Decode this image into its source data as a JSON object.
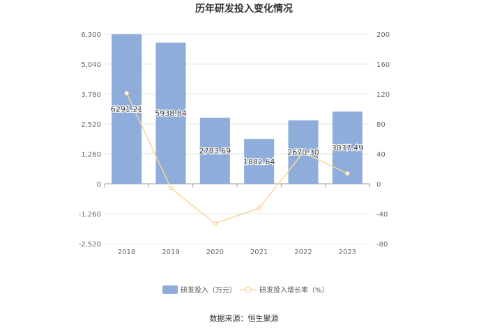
{
  "chart_data": {
    "type": "bar",
    "title": "历年研发投入变化情况",
    "categories": [
      "2018",
      "2019",
      "2020",
      "2021",
      "2022",
      "2023"
    ],
    "series": [
      {
        "name": "研发投入（万元）",
        "type": "bar",
        "axis": "left",
        "color": "#8eaddb",
        "values": [
          6291.21,
          5938.84,
          2783.69,
          1882.64,
          2670.3,
          3037.49
        ],
        "labels": [
          "6291.21",
          "5938.84",
          "2783.69",
          "1882.64",
          "2670.30",
          "3037.49"
        ]
      },
      {
        "name": "研发投入增长率（%）",
        "type": "line",
        "axis": "right",
        "color": "#f9d49a",
        "values": [
          121,
          -5.6,
          -53.1,
          -32.4,
          41.8,
          13.8
        ]
      }
    ],
    "y_left": {
      "ylim": [
        -2520,
        6300
      ],
      "ticks": [
        6300,
        5040,
        3780,
        2520,
        1260,
        0,
        -1260,
        -2520
      ],
      "tick_labels": [
        "6,300",
        "5,040",
        "3,780",
        "2,520",
        "1,260",
        "0",
        "-1,260",
        "-2,520"
      ]
    },
    "y_right": {
      "ylim": [
        -80,
        200
      ],
      "ticks": [
        200,
        160,
        120,
        80,
        40,
        0,
        -40,
        -80
      ],
      "tick_labels": [
        "200",
        "160",
        "120",
        "80",
        "40",
        "0",
        "-40",
        "-80"
      ]
    },
    "grid": true,
    "legend_position": "bottom"
  },
  "source": "数据来源：恒生聚源"
}
